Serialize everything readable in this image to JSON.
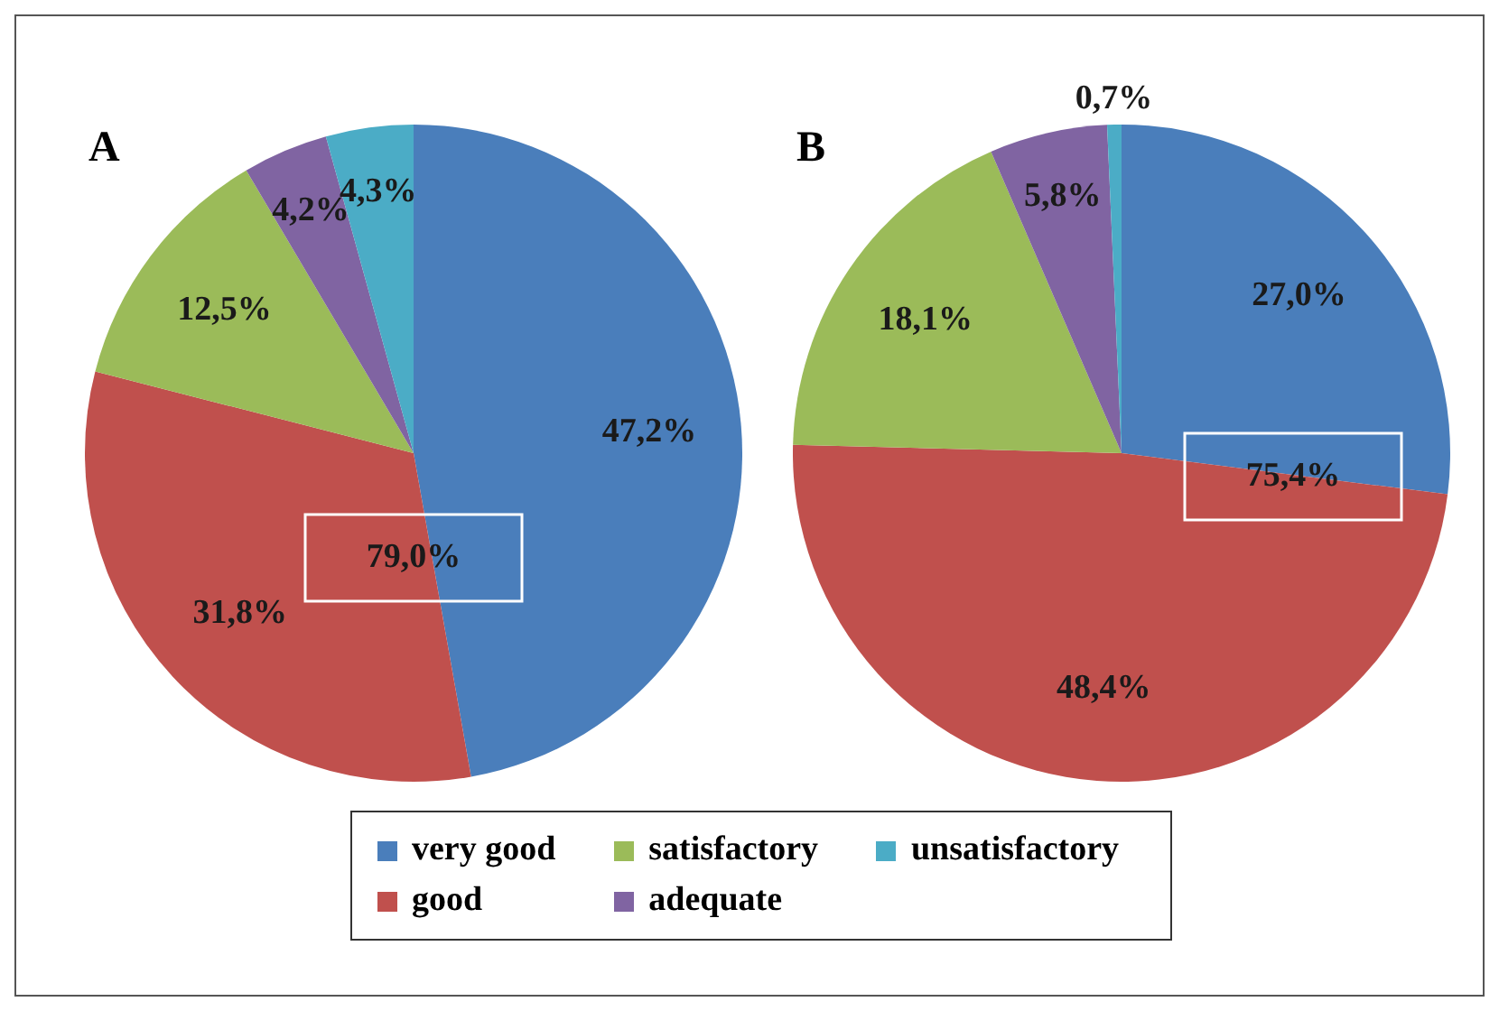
{
  "chart_data": [
    {
      "type": "pie",
      "title": "A",
      "categories": [
        "very good",
        "good",
        "satisfactory",
        "adequate",
        "unsatisfactory"
      ],
      "values": [
        47.2,
        31.8,
        12.5,
        4.2,
        4.3
      ],
      "colors": [
        "#4a7ebb",
        "#c0504d",
        "#9bbb59",
        "#8064a2",
        "#4bacc6"
      ],
      "value_labels": [
        "47,2%",
        "31,8%",
        "12,5%",
        "4,2%",
        "4,3%"
      ],
      "annotations": [
        "79,0%"
      ],
      "legend": "bottom"
    },
    {
      "type": "pie",
      "title": "B",
      "categories": [
        null,
        null,
        null,
        null,
        null
      ],
      "values": [
        27.0,
        48.4,
        18.1,
        5.8,
        0.7
      ],
      "colors": [
        "#4a7ebb",
        "#c0504d",
        "#9bbb59",
        "#8064a2",
        "#4bacc6"
      ],
      "value_labels": [
        "27,0%",
        "48,4%",
        "18,1%",
        "5,8%",
        "0,7%"
      ],
      "annotations": [
        "75,4%"
      ]
    }
  ]
}
